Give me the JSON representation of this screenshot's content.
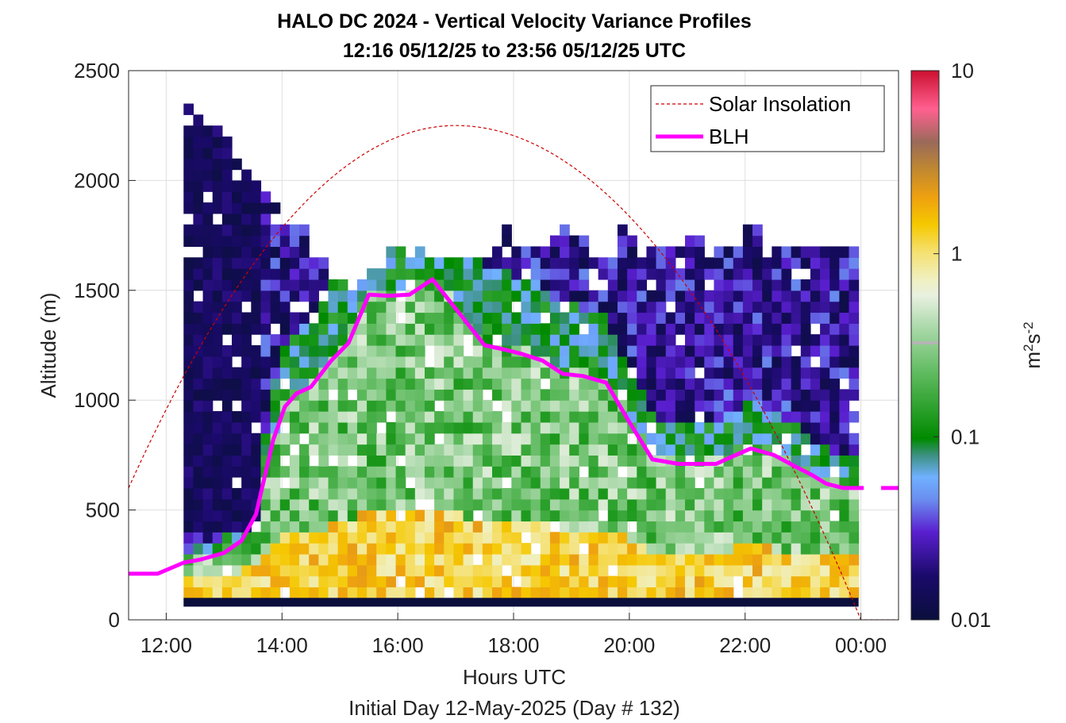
{
  "chart_data": {
    "type": "heatmap",
    "title": "HALO DC 2024 - Vertical Velocity Variance Profiles",
    "subtitle": "12:16 05/12/25 to 23:56 05/12/25  UTC",
    "xlabel": "Hours UTC",
    "footer": "Initial Day 12-May-2025 (Day # 132)",
    "ylabel": "Altitude (m)",
    "colorbar_label_main": "m",
    "colorbar_label_sup1": "2",
    "colorbar_label_mid": "s",
    "colorbar_label_sup2": "-2",
    "x_ticks": [
      "12:00",
      "14:00",
      "16:00",
      "18:00",
      "20:00",
      "22:00",
      "00:00"
    ],
    "x_tick_hours": [
      12,
      14,
      16,
      18,
      20,
      22,
      24
    ],
    "xlim_hours": [
      11.35,
      24.65
    ],
    "y_ticks": [
      "0",
      "500",
      "1000",
      "1500",
      "2000",
      "2500"
    ],
    "y_tick_values": [
      0,
      500,
      1000,
      1500,
      2000,
      2500
    ],
    "ylim": [
      0,
      2500
    ],
    "colorbar_ticks": [
      "0.01",
      "0.1",
      "1",
      "10"
    ],
    "colorbar_tick_values": [
      0.01,
      0.1,
      1,
      10
    ],
    "colorbar_scale": "log",
    "clim": [
      0.01,
      10
    ],
    "grid": true,
    "legend_position": "top-right",
    "legend": [
      "Solar Insolation",
      "BLH"
    ],
    "colors": {
      "blh": "#ff00ff",
      "solar": "#cc0000"
    },
    "heatmap": {
      "x_start_hour": 12.3,
      "x_end_hour": 23.96,
      "bin_hours": 0.1667,
      "bin_m": 50,
      "lowest_bin_m": 100,
      "top_envelope_m": [
        2350,
        2300,
        2250,
        2250,
        2200,
        2150,
        2050,
        2000,
        1950,
        1900,
        1800,
        1800,
        1800,
        1650,
        1650,
        1550,
        1550,
        1500,
        1550,
        1600,
        1600,
        1700,
        1700,
        1650,
        1700,
        1650,
        1650,
        1650,
        1650,
        1650,
        1650,
        1650,
        1700,
        1800,
        1700,
        1700,
        1700,
        1700,
        1750,
        1800,
        1750,
        1750,
        1650,
        1650,
        1650,
        1800,
        1750,
        1700,
        1700,
        1700,
        1700,
        1700,
        1750,
        1750,
        1700,
        1700,
        1700,
        1700,
        1800,
        1800,
        1650,
        1700,
        1700,
        1700,
        1700,
        1700,
        1700,
        1700,
        1700,
        1700
      ]
    },
    "blh_series": {
      "name": "BLH",
      "hours": [
        11.35,
        11.85,
        12.3,
        12.6,
        13.0,
        13.3,
        13.55,
        13.85,
        14.05,
        14.25,
        14.5,
        14.85,
        15.15,
        15.5,
        15.85,
        16.2,
        16.6,
        17.05,
        17.5,
        17.85,
        18.15,
        18.5,
        18.85,
        19.2,
        19.6,
        20.0,
        20.4,
        20.85,
        21.2,
        21.5,
        21.75,
        22.1,
        22.5,
        22.85,
        23.15,
        23.4,
        23.7,
        24.05
      ],
      "values": [
        210,
        210,
        260,
        275,
        305,
        360,
        480,
        820,
        970,
        1030,
        1060,
        1180,
        1260,
        1480,
        1475,
        1480,
        1550,
        1400,
        1250,
        1230,
        1210,
        1180,
        1120,
        1110,
        1080,
        900,
        730,
        710,
        710,
        710,
        740,
        780,
        750,
        700,
        660,
        620,
        600,
        600
      ],
      "tail_hours": [
        24.35,
        24.65
      ],
      "tail_values": [
        600,
        600
      ]
    },
    "solar_series": {
      "name": "Solar Insolation",
      "peak_hour": 17.0,
      "peak_value": 2250,
      "zero_hour": 24.0,
      "start_hour": 11.35,
      "start_value": 600,
      "flat_end_hour": 24.65,
      "flat_end_value": 0
    }
  }
}
